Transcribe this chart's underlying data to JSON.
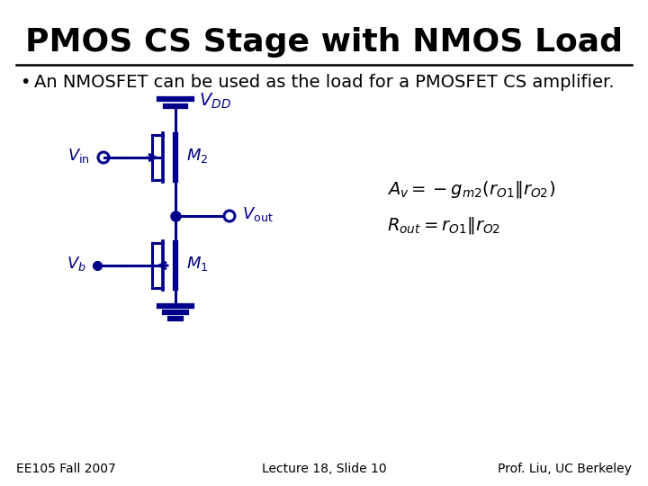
{
  "title": "PMOS CS Stage with NMOS Load",
  "bullet": "An NMOSFET can be used as the load for a PMOSFET CS amplifier.",
  "footer_left": "EE105 Fall 2007",
  "footer_center": "Lecture 18, Slide 10",
  "footer_right": "Prof. Liu, UC Berkeley",
  "circuit_color": "#00008B",
  "text_color": "#000000",
  "bg_color": "#ffffff",
  "title_fontsize": 26,
  "bullet_fontsize": 14,
  "footer_fontsize": 10,
  "eq1": "$A_v = -g_{m2}(r_{O1}\\|\\|\\, r_{O2})$",
  "eq2": "$R_{out} = r_{O1}\\|\\|\\, r_{O2}$"
}
